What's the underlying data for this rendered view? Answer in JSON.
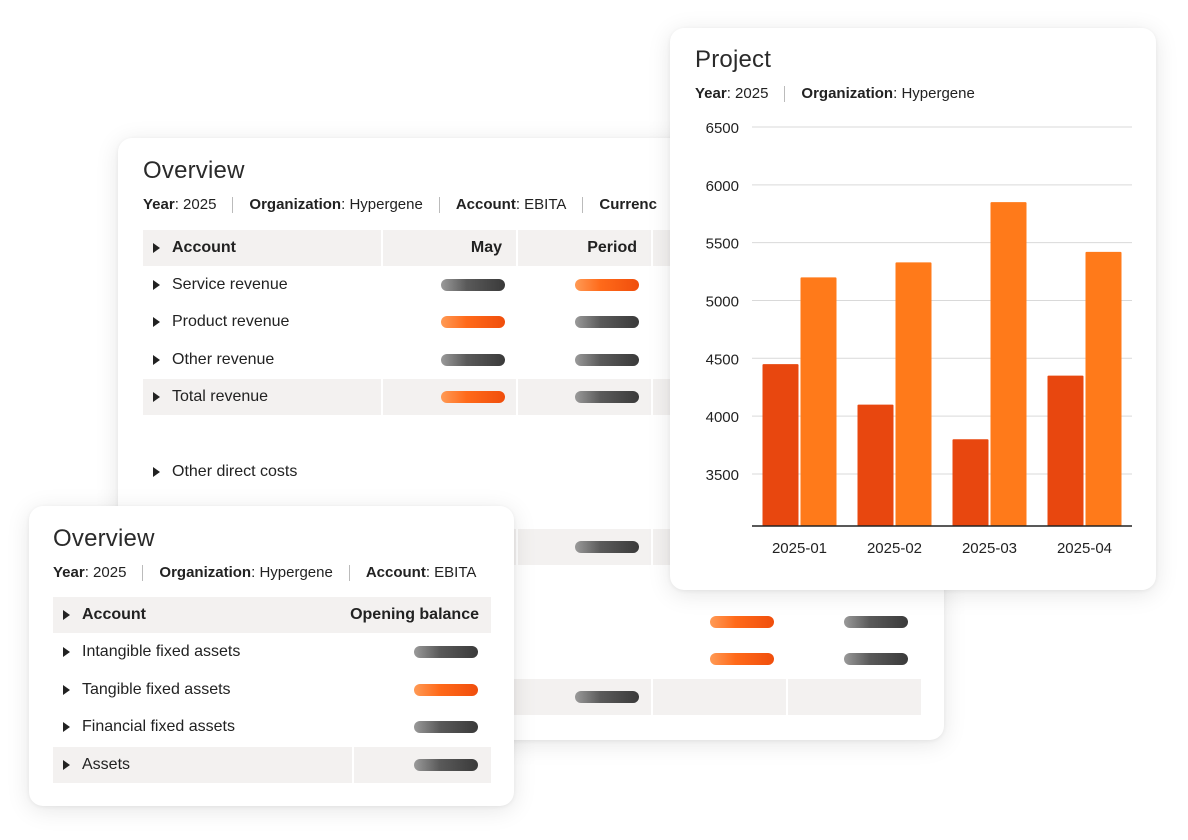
{
  "overview_main": {
    "title": "Overview",
    "meta": [
      {
        "label": "Year",
        "value": "2025"
      },
      {
        "label": "Organization",
        "value": "Hypergene"
      },
      {
        "label": "Account",
        "value": "EBITA"
      },
      {
        "label": "Currenc",
        "value": ""
      }
    ],
    "columns": [
      "Account",
      "May",
      "Period"
    ],
    "rows": [
      {
        "label": "Service revenue",
        "may": "gray",
        "period": "orange"
      },
      {
        "label": "Product revenue",
        "may": "orange",
        "period": "gray"
      },
      {
        "label": "Other revenue",
        "may": "gray",
        "period": "gray"
      },
      {
        "label": "Total revenue",
        "may": "orange",
        "period": "gray"
      },
      {
        "label": "Other direct costs"
      }
    ]
  },
  "overview_small": {
    "title": "Overview",
    "meta": [
      {
        "label": "Year",
        "value": "2025"
      },
      {
        "label": "Organization",
        "value": "Hypergene"
      },
      {
        "label": "Account",
        "value": "EBITA"
      }
    ],
    "columns": [
      "Account",
      "Opening balance"
    ],
    "rows": [
      {
        "label": "Intangible fixed assets",
        "value": "gray"
      },
      {
        "label": "Tangible fixed assets",
        "value": "orange"
      },
      {
        "label": "Financial fixed assets",
        "value": "gray"
      },
      {
        "label": "Assets",
        "value": "gray"
      }
    ]
  },
  "project": {
    "title": "Project",
    "meta": [
      {
        "label": "Year",
        "value": "2025"
      },
      {
        "label": "Organization",
        "value": "Hypergene"
      }
    ]
  },
  "colors": {
    "orange": "#f26b1d",
    "dark_orange": "#e8470f",
    "light_orange": "#ff7a1a",
    "gray_pill": "#555555"
  },
  "chart_data": {
    "type": "bar",
    "categories": [
      "2025-01",
      "2025-02",
      "2025-03",
      "2025-04"
    ],
    "series": [
      {
        "values": [
          4450,
          4100,
          3800,
          4350
        ],
        "color": "#e8470f"
      },
      {
        "values": [
          5200,
          5330,
          5850,
          5420
        ],
        "color": "#ff7a1a"
      }
    ],
    "yticks": [
      3500,
      4000,
      4500,
      5000,
      5500,
      6000,
      6500
    ],
    "ylim": [
      3050,
      6500
    ],
    "grid": true,
    "title": "",
    "xlabel": "",
    "ylabel": ""
  }
}
